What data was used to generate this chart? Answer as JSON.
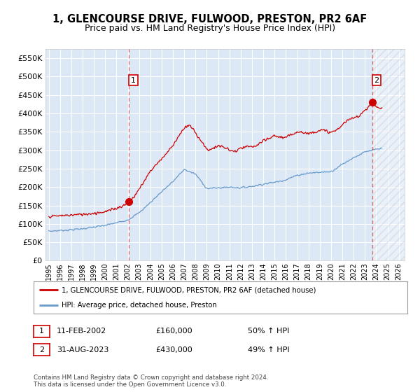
{
  "title": "1, GLENCOURSE DRIVE, FULWOOD, PRESTON, PR2 6AF",
  "subtitle": "Price paid vs. HM Land Registry's House Price Index (HPI)",
  "ylim": [
    0,
    575000
  ],
  "yticks": [
    0,
    50000,
    100000,
    150000,
    200000,
    250000,
    300000,
    350000,
    400000,
    450000,
    500000,
    550000
  ],
  "ytick_labels": [
    "£0",
    "£50K",
    "£100K",
    "£150K",
    "£200K",
    "£250K",
    "£300K",
    "£350K",
    "£400K",
    "£450K",
    "£500K",
    "£550K"
  ],
  "xlim_start": 1994.7,
  "xlim_end": 2026.5,
  "xticks": [
    1995,
    1996,
    1997,
    1998,
    1999,
    2000,
    2001,
    2002,
    2003,
    2004,
    2005,
    2006,
    2007,
    2008,
    2009,
    2010,
    2011,
    2012,
    2013,
    2014,
    2015,
    2016,
    2017,
    2018,
    2019,
    2020,
    2021,
    2022,
    2023,
    2024,
    2025,
    2026
  ],
  "plot_bg_color": "#dce8f5",
  "grid_color": "#ffffff",
  "red_line_color": "#cc0000",
  "blue_line_color": "#6699cc",
  "sale1_x": 2002.11,
  "sale1_y": 160000,
  "sale1_label": "1",
  "sale2_x": 2023.67,
  "sale2_y": 430000,
  "sale2_label": "2",
  "legend_entries": [
    "1, GLENCOURSE DRIVE, FULWOOD, PRESTON, PR2 6AF (detached house)",
    "HPI: Average price, detached house, Preston"
  ],
  "table_rows": [
    [
      "1",
      "11-FEB-2002",
      "£160,000",
      "50% ↑ HPI"
    ],
    [
      "2",
      "31-AUG-2023",
      "£430,000",
      "49% ↑ HPI"
    ]
  ],
  "footnote": "Contains HM Land Registry data © Crown copyright and database right 2024.\nThis data is licensed under the Open Government Licence v3.0.",
  "hatch_start": 2023.67,
  "title_fontsize": 10.5,
  "subtitle_fontsize": 9
}
